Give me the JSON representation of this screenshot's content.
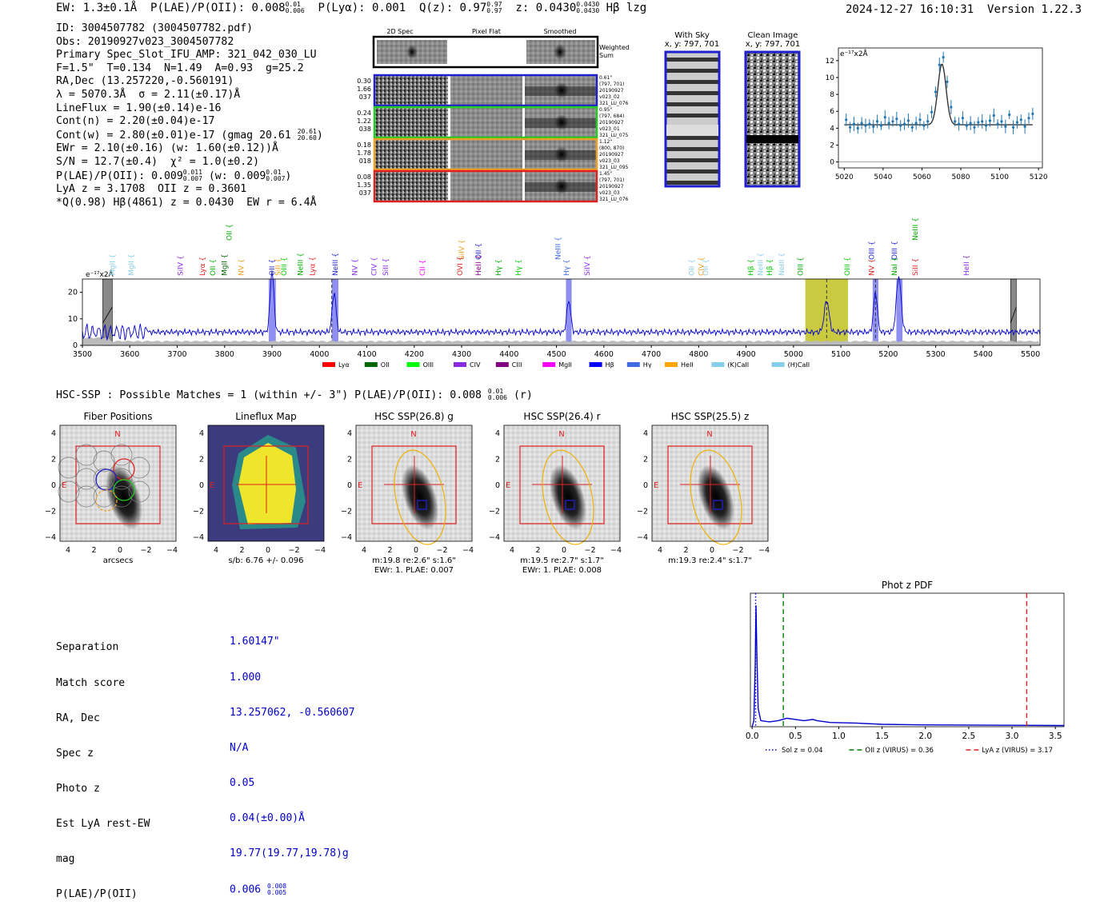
{
  "header": {
    "ew": "EW: 1.3±0.1Å",
    "plae": "P(LAE)/P(OII): 0.008",
    "plae_hi": "0.01",
    "plae_lo": "0.006",
    "plya": "P(Lyα): 0.001",
    "qz": "Q(z): 0.97",
    "qz_hi": "0.97",
    "qz_lo": "0.97",
    "z": "z: 0.0430",
    "z_hi": "0.0430",
    "z_lo": "0.0430",
    "line": "Hβ  lzg",
    "timestamp": "2024-12-27 16:10:31",
    "version": "Version 1.22.3"
  },
  "info": {
    "id": "ID: 3004507782 (3004507782.pdf)",
    "obs": "Obs: 20190927v023_3004507782",
    "primary": "Primary Spec_Slot_IFU_AMP: 321_042_030_LU",
    "fibers": "F=1.5\"  T=0.134  N=1.49  A=0.93  g=25.2",
    "radec": "RA,Dec (13.257220,-0.560191)",
    "lambda": "λ = 5070.3Å  σ = 2.11(±0.17)Å",
    "lineflux": "LineFlux = 1.90(±0.14)e-16",
    "contn": "Cont(n) = 2.20(±0.04)e-17",
    "contw": "Cont(w) = 2.80(±0.01)e-17 (gmag 20.61",
    "contw_hi": "20.61",
    "contw_lo": "20.60",
    "contw_end": ")",
    "ewr": "EWr = 2.10(±0.16) (w: 1.60(±0.12))Å",
    "sn": "S/N = 12.7(±0.4)  χ² = 1.0(±0.2)",
    "plae": "P(LAE)/P(OII): 0.009",
    "plae_a_hi": "0.011",
    "plae_a_lo": "0.007",
    "plae_w": " (w: 0.009",
    "plae_b_hi": "0.01",
    "plae_b_lo": "0.007",
    "plae_end": ")",
    "lya": "LyA z = 3.1708  OII z = 0.3601",
    "q": "*Q(0.98) Hβ(4861) z = 0.0430  EW r = 6.4Å"
  },
  "cutouts": {
    "col_titles": [
      "2D Spec",
      "Pixel Flat",
      "Smoothed"
    ],
    "weighted_sum": [
      "Weighted",
      "Sum"
    ],
    "rows": [
      {
        "left": [
          "0.30",
          "1.66",
          "037"
        ],
        "right": [
          "0.61\"",
          "(797, 701)",
          "20190927",
          "v023_02",
          "321_LU_076"
        ],
        "color": "#1f1fcc"
      },
      {
        "left": [
          "0.24",
          "1.22",
          "038"
        ],
        "right": [
          "0.95\"",
          "(797, 684)",
          "20190927",
          "v023_01",
          "321_LU_075"
        ],
        "color": "#22cc22"
      },
      {
        "left": [
          "0.18",
          "1.78",
          "018"
        ],
        "right": [
          "1.12\"",
          "(800, 870)",
          "20190927",
          "v023_03",
          "321_LU_095"
        ],
        "color": "#f0a020"
      },
      {
        "left": [
          "0.08",
          "1.35",
          "037"
        ],
        "right": [
          "1.45\"",
          "(797, 701)",
          "20190927",
          "v023_03",
          "321_LU_076"
        ],
        "color": "#e02020"
      }
    ],
    "with_sky": "With Sky",
    "with_sky_xy": "x, y: 797, 701",
    "clean": "Clean Image",
    "clean_xy": "x, y: 797, 701"
  },
  "chart_data": [
    {
      "type": "line",
      "name": "emission-line-zoom",
      "ylabel": "e⁻¹⁷x2Å",
      "xlim": [
        5017,
        5122
      ],
      "ylim": [
        -0.7,
        13.5
      ],
      "xticks": [
        5020,
        5040,
        5060,
        5080,
        5100,
        5120
      ],
      "yticks": [
        0,
        2,
        4,
        6,
        8,
        10,
        12
      ],
      "fit": {
        "center": 5070.3,
        "sigma": 2.11,
        "continuum": 4.4,
        "amplitude": 7.2
      },
      "points": [
        [
          5021,
          5.0
        ],
        [
          5023,
          4.1
        ],
        [
          5025,
          4.5
        ],
        [
          5027,
          4.0
        ],
        [
          5029,
          4.6
        ],
        [
          5031,
          4.3
        ],
        [
          5033,
          4.5
        ],
        [
          5035,
          4.2
        ],
        [
          5037,
          4.8
        ],
        [
          5039,
          4.3
        ],
        [
          5041,
          5.3
        ],
        [
          5043,
          4.6
        ],
        [
          5045,
          4.8
        ],
        [
          5047,
          5.1
        ],
        [
          5049,
          4.3
        ],
        [
          5051,
          4.5
        ],
        [
          5053,
          4.9
        ],
        [
          5055,
          4.1
        ],
        [
          5057,
          4.6
        ],
        [
          5059,
          5.0
        ],
        [
          5061,
          4.3
        ],
        [
          5063,
          4.8
        ],
        [
          5065,
          5.9
        ],
        [
          5067,
          8.3
        ],
        [
          5069,
          11.5
        ],
        [
          5071,
          12.4
        ],
        [
          5073,
          9.5
        ],
        [
          5075,
          6.5
        ],
        [
          5077,
          4.8
        ],
        [
          5079,
          4.5
        ],
        [
          5081,
          5.2
        ],
        [
          5083,
          4.3
        ],
        [
          5085,
          4.6
        ],
        [
          5087,
          4.1
        ],
        [
          5089,
          4.7
        ],
        [
          5091,
          4.8
        ],
        [
          5093,
          4.3
        ],
        [
          5095,
          4.9
        ],
        [
          5097,
          5.5
        ],
        [
          5099,
          4.5
        ],
        [
          5101,
          4.8
        ],
        [
          5103,
          4.2
        ],
        [
          5105,
          5.6
        ],
        [
          5107,
          4.1
        ],
        [
          5109,
          4.7
        ],
        [
          5111,
          5.0
        ],
        [
          5113,
          4.2
        ],
        [
          5115,
          5.2
        ],
        [
          5117,
          5.7
        ]
      ]
    },
    {
      "type": "line",
      "name": "full-spectrum",
      "ylabel": "e⁻¹⁷x2Å",
      "xlim": [
        3500,
        5520
      ],
      "ylim": [
        0,
        25
      ],
      "xticks": [
        3500,
        3600,
        3700,
        3800,
        3900,
        4000,
        4100,
        4200,
        4300,
        4400,
        4500,
        4600,
        4700,
        4800,
        4900,
        5000,
        5100,
        5200,
        5300,
        5400,
        5500
      ],
      "yticks": [
        0,
        10,
        20
      ],
      "continuum": 5.0,
      "peaks": [
        {
          "x": 3900,
          "height": 23,
          "width": 4
        },
        {
          "x": 4031,
          "height": 15,
          "width": 4
        },
        {
          "x": 4526,
          "height": 12,
          "width": 4
        },
        {
          "x": 5070,
          "height": 12,
          "width": 5
        },
        {
          "x": 5173,
          "height": 15,
          "width": 4
        },
        {
          "x": 5222,
          "height": 21,
          "width": 5
        }
      ],
      "bands": [
        {
          "from": 3893,
          "to": 3908,
          "color": "#6a6aee"
        },
        {
          "from": 4026,
          "to": 4040,
          "color": "#6a6aee"
        },
        {
          "from": 4520,
          "to": 4532,
          "color": "#6a6aee"
        },
        {
          "from": 5167,
          "to": 5179,
          "color": "#6a6aee"
        },
        {
          "from": 5217,
          "to": 5230,
          "color": "#6a6aee"
        },
        {
          "from": 5025,
          "to": 5115,
          "color": "#b8b800"
        }
      ],
      "masks": [
        {
          "from": 3543,
          "to": 3563
        },
        {
          "from": 5458,
          "to": 5470
        }
      ],
      "dashed_lines": [
        4026,
        5070,
        5173
      ],
      "line_labels": [
        {
          "label": "MgII",
          "x": 3568,
          "color": "#87ceeb",
          "row": 0
        },
        {
          "label": "MgII",
          "x": 3608,
          "color": "#87ceeb",
          "row": 0
        },
        {
          "label": "SiIV",
          "x": 3712,
          "color": "#8a2be2",
          "row": 0
        },
        {
          "label": "Lyα",
          "x": 3758,
          "color": "#e02020",
          "row": 0
        },
        {
          "label": "OII",
          "x": 3780,
          "color": "#00aa00",
          "row": 0
        },
        {
          "label": "MgII",
          "x": 3805,
          "color": "#006400",
          "row": 0
        },
        {
          "label": "OII",
          "x": 3815,
          "color": "#00aa00",
          "row": 2
        },
        {
          "label": "NV",
          "x": 3840,
          "color": "#f0a020",
          "row": 0
        },
        {
          "label": "OII",
          "x": 3905,
          "color": "#1f1fcc",
          "row": 0
        },
        {
          "label": "SiII",
          "x": 3918,
          "color": "#f0a020",
          "row": 0
        },
        {
          "label": "OIII",
          "x": 3930,
          "color": "#00cc00",
          "row": 0
        },
        {
          "label": "NeIII",
          "x": 3965,
          "color": "#00aa00",
          "row": 0
        },
        {
          "label": "Lyα",
          "x": 3990,
          "color": "#e02020",
          "row": 0
        },
        {
          "label": "NeIII",
          "x": 4038,
          "color": "#1f1fcc",
          "row": 0
        },
        {
          "label": "NV",
          "x": 4080,
          "color": "#8a2be2",
          "row": 0
        },
        {
          "label": "CIV",
          "x": 4120,
          "color": "#8a2be2",
          "row": 0
        },
        {
          "label": "SiII",
          "x": 4145,
          "color": "#8a2be2",
          "row": 0
        },
        {
          "label": "CII",
          "x": 4222,
          "color": "#ff00ff",
          "row": 0
        },
        {
          "label": "SiIV",
          "x": 4305,
          "color": "#f0a020",
          "row": 1
        },
        {
          "label": "OVI",
          "x": 4302,
          "color": "#e02020",
          "row": 0
        },
        {
          "label": "OII",
          "x": 4340,
          "color": "#1f1fcc",
          "row": 1
        },
        {
          "label": "HeII",
          "x": 4340,
          "color": "#8b008b",
          "row": 0
        },
        {
          "label": "Hγ",
          "x": 4383,
          "color": "#00aa00",
          "row": 0
        },
        {
          "label": "Hγ",
          "x": 4425,
          "color": "#00cc00",
          "row": 0
        },
        {
          "label": "NeIII",
          "x": 4508,
          "color": "#4169e1",
          "row": 1
        },
        {
          "label": "Hγ",
          "x": 4526,
          "color": "#4169e1",
          "row": 0
        },
        {
          "label": "SiIV",
          "x": 4570,
          "color": "#8a2be2",
          "row": 0
        },
        {
          "label": "OII",
          "x": 4790,
          "color": "#87ceeb",
          "row": 0
        },
        {
          "label": "OII",
          "x": 4820,
          "color": "#87ceeb",
          "row": 0
        },
        {
          "label": "CIV",
          "x": 4810,
          "color": "#f0a020",
          "row": 0
        },
        {
          "label": "Hβ",
          "x": 4915,
          "color": "#00cc00",
          "row": 0
        },
        {
          "label": "NeIII",
          "x": 4935,
          "color": "#87ceeb",
          "row": 0
        },
        {
          "label": "Hβ",
          "x": 4955,
          "color": "#00cc00",
          "row": 0
        },
        {
          "label": "NeIII",
          "x": 4980,
          "color": "#87ceeb",
          "row": 0
        },
        {
          "label": "OIII",
          "x": 5020,
          "color": "#00aa00",
          "row": 0
        },
        {
          "label": "OIII",
          "x": 5118,
          "color": "#00cc00",
          "row": 0
        },
        {
          "label": "OIII",
          "x": 5170,
          "color": "#1f1fcc",
          "row": 1
        },
        {
          "label": "NV",
          "x": 5170,
          "color": "#e02020",
          "row": 0
        },
        {
          "label": "OIII",
          "x": 5218,
          "color": "#1f1fcc",
          "row": 1
        },
        {
          "label": "NaI",
          "x": 5218,
          "color": "#00aa00",
          "row": 0
        },
        {
          "label": "NeIII",
          "x": 5262,
          "color": "#00aa00",
          "row": 2
        },
        {
          "label": "SiII",
          "x": 5262,
          "color": "#e02020",
          "row": 0
        },
        {
          "label": "HeII",
          "x": 5370,
          "color": "#8a2be2",
          "row": 0
        }
      ],
      "legend": [
        {
          "label": "Lyα",
          "color": "#ff0000"
        },
        {
          "label": "OII",
          "color": "#006400"
        },
        {
          "label": "OIII",
          "color": "#00ff00"
        },
        {
          "label": "CIV",
          "color": "#8a2be2"
        },
        {
          "label": "CIII",
          "color": "#800080"
        },
        {
          "label": "MgII",
          "color": "#ff00ff"
        },
        {
          "label": "Hβ",
          "color": "#0000ff"
        },
        {
          "label": "Hγ",
          "color": "#4169e1"
        },
        {
          "label": "HeII",
          "color": "#ffa500"
        },
        {
          "label": "(K)CaII",
          "color": "#87ceeb"
        },
        {
          "label": "(H)CaII",
          "color": "#87ceeb"
        }
      ]
    },
    {
      "type": "line",
      "name": "phot-z-pdf",
      "title": "Phot z PDF",
      "xlim": [
        -0.02,
        3.6
      ],
      "ylim": [
        0,
        1.1
      ],
      "xticks": [
        0.0,
        0.5,
        1.0,
        1.5,
        2.0,
        2.5,
        3.0,
        3.5
      ],
      "curve": [
        [
          0.0,
          0.0
        ],
        [
          0.02,
          0.05
        ],
        [
          0.035,
          0.5
        ],
        [
          0.045,
          1.0
        ],
        [
          0.055,
          0.6
        ],
        [
          0.07,
          0.15
        ],
        [
          0.1,
          0.05
        ],
        [
          0.2,
          0.04
        ],
        [
          0.3,
          0.05
        ],
        [
          0.4,
          0.07
        ],
        [
          0.5,
          0.06
        ],
        [
          0.6,
          0.05
        ],
        [
          0.7,
          0.06
        ],
        [
          0.75,
          0.05
        ],
        [
          0.9,
          0.035
        ],
        [
          1.2,
          0.03
        ],
        [
          1.5,
          0.02
        ],
        [
          2.0,
          0.015
        ],
        [
          3.0,
          0.012
        ],
        [
          3.6,
          0.01
        ]
      ],
      "vlines": [
        {
          "x": 0.04,
          "style": "dotted",
          "color": "#0000cc",
          "label": "Sol z = 0.04"
        },
        {
          "x": 0.36,
          "style": "dashed",
          "color": "#008000",
          "label": "OII z (VIRUS) = 0.36"
        },
        {
          "x": 3.17,
          "style": "dashed",
          "color": "#e02020",
          "label": "LyA z (VIRUS) = 3.17"
        }
      ]
    }
  ],
  "hsc": {
    "title": "HSC-SSP : Possible Matches = 1 (within +/- 3\")  P(LAE)/P(OII): 0.008",
    "title_hi": "0.01",
    "title_lo": "0.006",
    "title_end": "(r)",
    "panels": [
      {
        "title": "Fiber Positions",
        "caption": [
          "arcsecs"
        ]
      },
      {
        "title": "Lineflux Map",
        "caption": [
          "s/b: 6.76 +/- 0.096"
        ]
      },
      {
        "title": "HSC SSP(26.8) g",
        "caption": [
          "m:19.8  re:2.6\"  s:1.6\"",
          "EWr: 1. PLAE: 0.007"
        ]
      },
      {
        "title": "HSC SSP(26.4) r",
        "caption": [
          "m:19.5  re:2.7\"  s:1.7\"",
          "EWr: 1. PLAE: 0.008"
        ]
      },
      {
        "title": "HSC SSP(25.5) z",
        "caption": [
          "m:19.3  re:2.4\"  s:1.7\""
        ]
      }
    ],
    "axis_ticks": [
      "4",
      "2",
      "0",
      "−2",
      "−4"
    ],
    "north": "N",
    "east": "E"
  },
  "separation": {
    "labels": [
      "Separation",
      "Match score",
      "RA, Dec",
      "Spec z",
      "Photo z",
      "Est LyA rest-EW",
      "mag",
      "P(LAE)/P(OII)"
    ],
    "values": [
      "1.60147\"",
      "1.000",
      "13.257062, -0.560607",
      "N/A",
      "0.05",
      "0.04(±0.00)Å",
      "19.77(19.77,19.78)g",
      "0.006"
    ],
    "plae_hi": "0.008",
    "plae_lo": "0.005"
  }
}
